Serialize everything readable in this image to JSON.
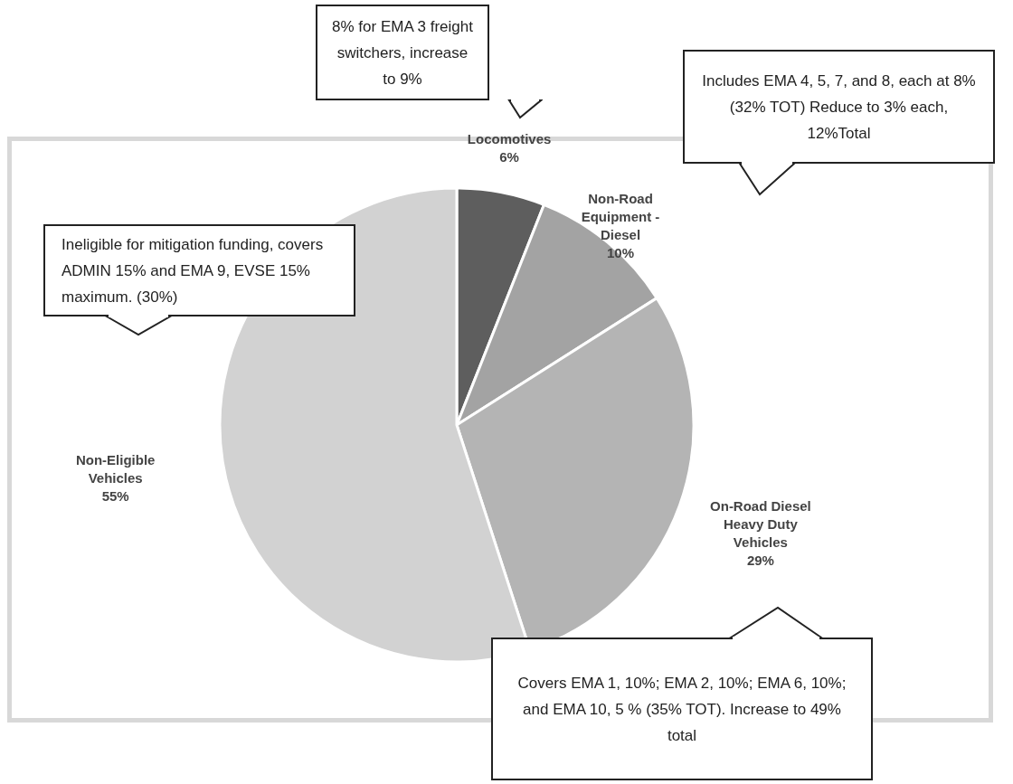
{
  "chart_data": {
    "type": "pie",
    "categories": [
      "Locomotives",
      "Non-Road Equipment - Diesel",
      "On-Road Diesel Heavy Duty Vehicles",
      "Non-Eligible Vehicles"
    ],
    "values": [
      6,
      10,
      29,
      55
    ],
    "colors": [
      "#5e5e5e",
      "#a3a3a3",
      "#b4b4b4",
      "#d2d2d2"
    ],
    "value_labels": [
      "6%",
      "10%",
      "29%",
      "55%"
    ],
    "legend": false,
    "annotations": [
      "8% for EMA 3 freight switchers, increase to 9%",
      "Includes EMA 4, 5, 7, and 8, each at 8% (32% TOT) Reduce to 3% each, 12%Total",
      "Ineligible for mitigation funding, covers ADMIN 15% and EMA 9, EVSE 15% maximum. (30%)",
      "Covers EMA 1, 10%; EMA 2, 10%; EMA 6, 10%; and EMA 10, 5 % (35% TOT). Increase to 49% total"
    ]
  }
}
